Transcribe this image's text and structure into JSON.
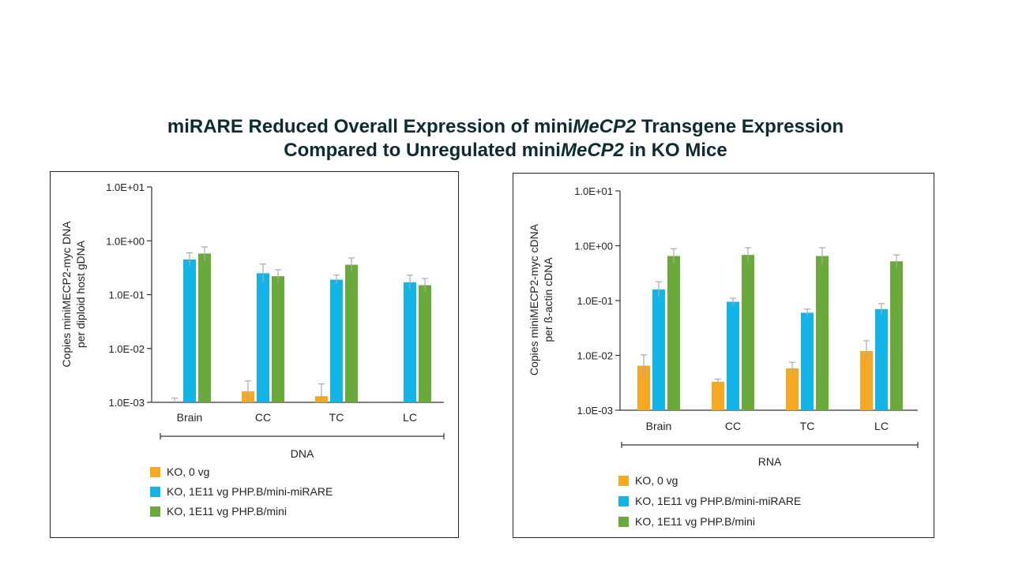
{
  "title": {
    "line1_a": "miRARE Reduced Overall Expression of mini",
    "line1_b": "MeCP2",
    "line1_c": " Transgene Expression",
    "line2_a": "Compared to Unregulated mini",
    "line2_b": "MeCP2",
    "line2_c": " in KO Mice"
  },
  "colors": {
    "ko": "#f7a823",
    "mirare": "#13b5e8",
    "mini": "#6aaa3a",
    "error": "#aaaaaa"
  },
  "chart_data": [
    {
      "type": "bar",
      "log_scale": true,
      "ylim": [
        0.001,
        10
      ],
      "yticks": [
        "1.0E+01",
        "1.0E+00",
        "1.0E-01",
        "1.0E-02",
        "1.0E-03"
      ],
      "categories": [
        "Brain",
        "CC",
        "TC",
        "LC"
      ],
      "ylabel_line1": "Copies miniMECP2-myc DNA",
      "ylabel_line2": "per diploid host gDNA",
      "group_label": "DNA",
      "series": [
        {
          "name": "KO, 0 vg",
          "values": [
            0.001,
            0.0016,
            0.0013,
            null
          ],
          "err": [
            0.0012,
            0.0025,
            0.0022,
            null
          ]
        },
        {
          "name": "KO, 1E11 vg PHP.B/mini-miRARE",
          "values": [
            0.45,
            0.25,
            0.19,
            0.17
          ],
          "err": [
            0.6,
            0.37,
            0.23,
            0.23
          ]
        },
        {
          "name": "KO, 1E11 vg PHP.B/mini",
          "values": [
            0.58,
            0.22,
            0.36,
            0.15
          ],
          "err": [
            0.77,
            0.29,
            0.48,
            0.2
          ]
        }
      ]
    },
    {
      "type": "bar",
      "log_scale": true,
      "ylim": [
        0.001,
        10
      ],
      "yticks": [
        "1.0E+01",
        "1.0E+00",
        "1.0E-01",
        "1.0E-02",
        "1.0E-03"
      ],
      "categories": [
        "Brain",
        "CC",
        "TC",
        "LC"
      ],
      "ylabel_line1": "Copies miniMECP2-myc cDNA",
      "ylabel_line2": "per ß-actin cDNA",
      "group_label": "RNA",
      "series": [
        {
          "name": "KO, 0 vg",
          "values": [
            0.0065,
            0.0033,
            0.0058,
            0.012
          ],
          "err": [
            0.0102,
            0.0037,
            0.0075,
            0.0185
          ]
        },
        {
          "name": "KO, 1E11 vg PHP.B/mini-miRARE",
          "values": [
            0.16,
            0.095,
            0.06,
            0.07
          ],
          "err": [
            0.22,
            0.11,
            0.07,
            0.088
          ]
        },
        {
          "name": "KO, 1E11 vg PHP.B/mini",
          "values": [
            0.65,
            0.68,
            0.65,
            0.52
          ],
          "err": [
            0.88,
            0.92,
            0.92,
            0.68
          ]
        }
      ]
    }
  ]
}
